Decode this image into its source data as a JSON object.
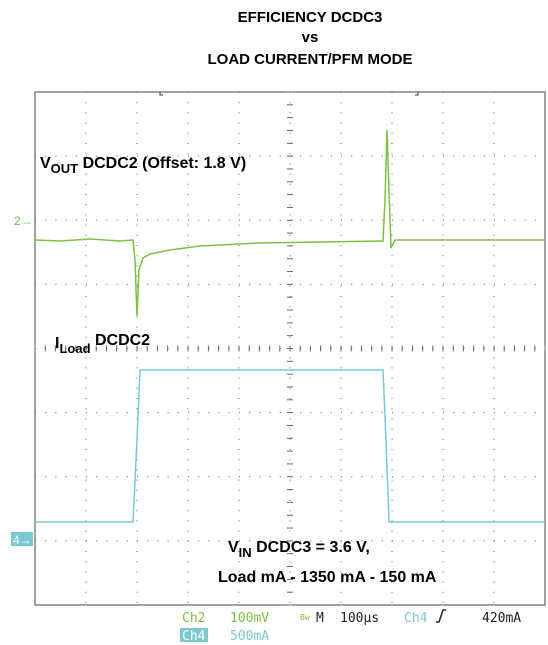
{
  "chart_data": {
    "type": "oscilloscope",
    "title": [
      "EFFICIENCY DCDC3",
      "vs",
      "LOAD CURRENT/PFM MODE"
    ],
    "annotations": {
      "vout": [
        "V",
        "OUT",
        " DCDC2 (Offset: 1.8 V)"
      ],
      "iload": [
        "I",
        "Load",
        " DCDC2"
      ],
      "vin": [
        "V",
        "IN",
        " DCDC3 = 3.6 V,"
      ],
      "load": "Load mA - 1350 mA - 150 mA"
    },
    "markers": [
      "2",
      "4"
    ],
    "status": {
      "ch2": "Ch2",
      "ch2_scale": "100mV",
      "timebase_label": "M",
      "timebase": "100µs",
      "trig_ch": "Ch4",
      "trig_level": "420mA",
      "ch4": "Ch4",
      "ch4_scale": "500mA"
    },
    "colors": {
      "ch2": "#7dc142",
      "ch4": "#7cc8d0"
    }
  }
}
